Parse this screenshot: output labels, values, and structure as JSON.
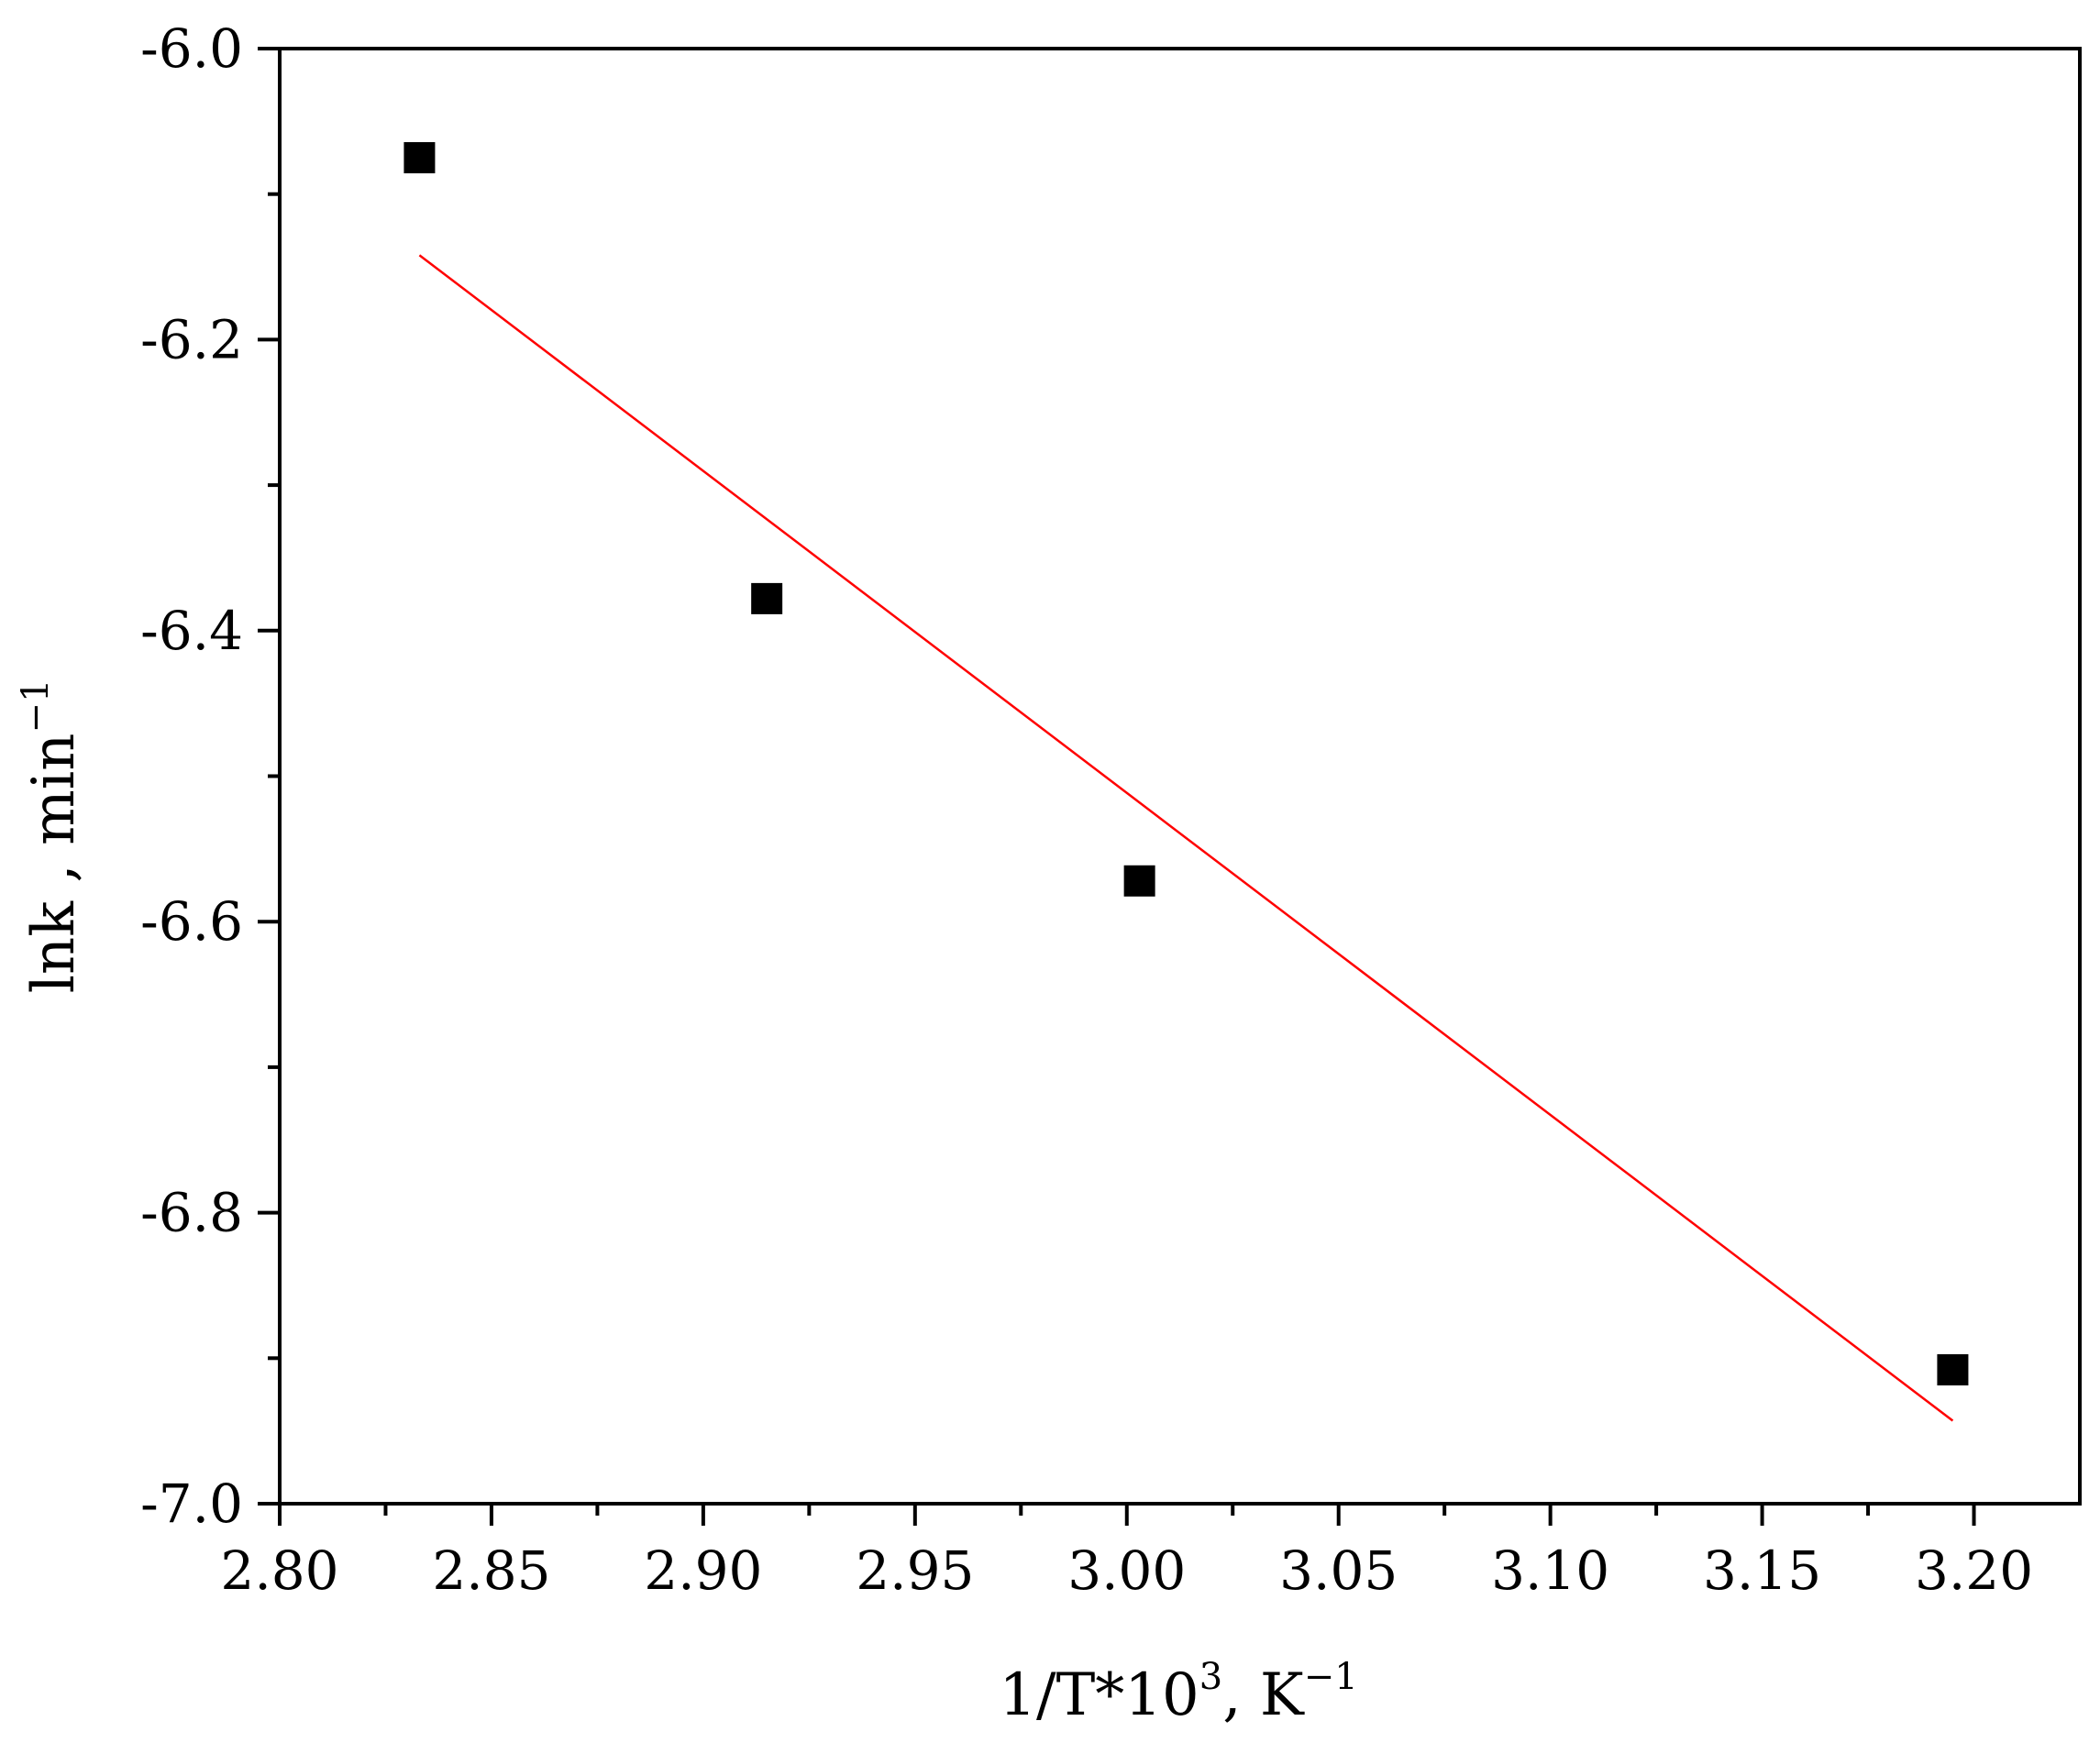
{
  "chart_data": {
    "type": "scatter",
    "xlabel": "1/T*10",
    "xlabel_sup": "3",
    "xlabel_unit": ", K",
    "xlabel_unit_sup": "−1",
    "ylabel": "lnk , min",
    "ylabel_sup": "−1",
    "xlim": [
      2.8,
      3.225
    ],
    "ylim": [
      -7.0,
      -6.0
    ],
    "x_ticks": [
      "2.80",
      "2.85",
      "2.90",
      "2.95",
      "3.00",
      "3.05",
      "3.10",
      "3.15",
      "3.20"
    ],
    "y_ticks": [
      "-6.0",
      "-6.2",
      "-6.4",
      "-6.6",
      "-6.8",
      "-7.0"
    ],
    "x_minor_step": 0.025,
    "y_minor_step": 0.1,
    "grid": false,
    "legend": "none",
    "series": [
      {
        "marker": "square",
        "color": "#000000",
        "x": [
          2.833,
          2.915,
          3.003,
          3.195
        ],
        "y": [
          -6.075,
          -6.378,
          -6.572,
          -6.908
        ]
      }
    ],
    "fit_line": {
      "color": "#ff0000",
      "x": [
        2.833,
        3.195
      ],
      "y": [
        -6.142,
        -6.943
      ]
    }
  }
}
